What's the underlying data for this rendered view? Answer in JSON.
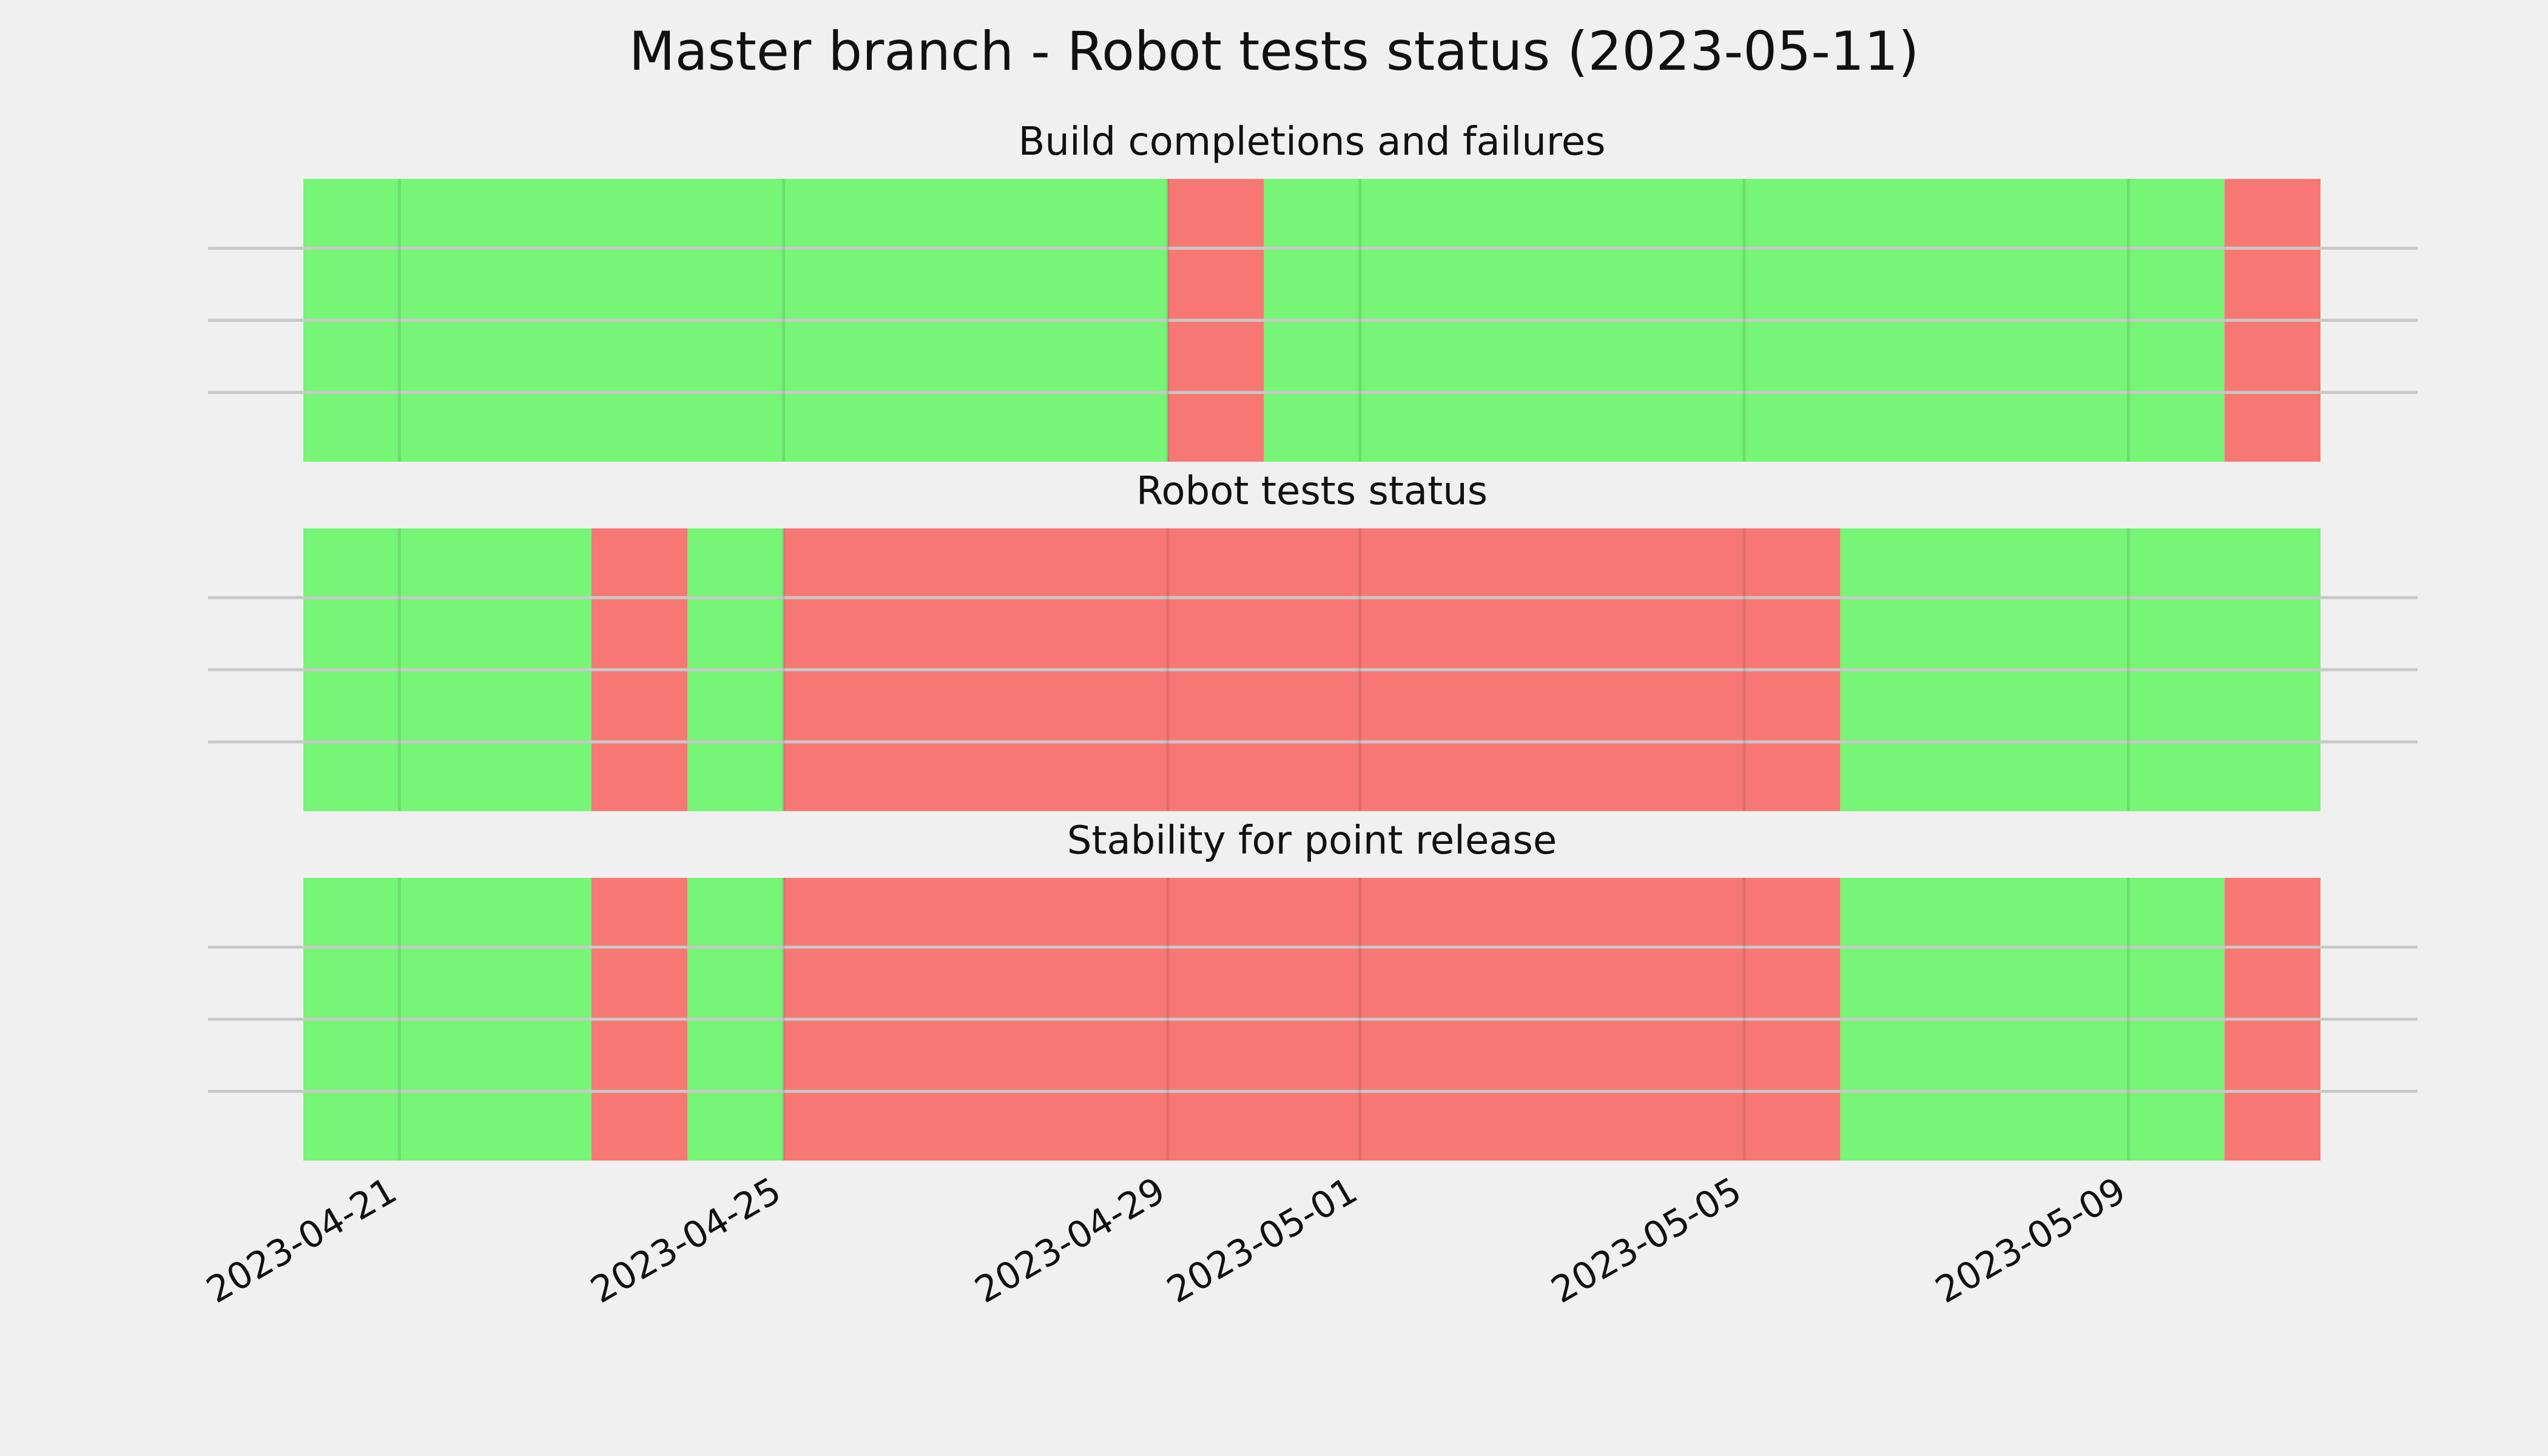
{
  "chart_data": {
    "type": "timeline",
    "title": "Master branch - Robot tests status (2023-05-11)",
    "colors": {
      "pass": "#76f576",
      "fail": "#f77774",
      "background": "#f0f0f0",
      "grid": "#c8c8c8"
    },
    "xlim": [
      "2023-04-20",
      "2023-05-11"
    ],
    "xticks": [
      "2023-04-21",
      "2023-04-25",
      "2023-04-29",
      "2023-05-01",
      "2023-05-05",
      "2023-05-09"
    ],
    "grid": true,
    "panels": [
      {
        "title": "Build completions and failures",
        "segments": [
          {
            "start": "2023-04-20",
            "end": "2023-04-29",
            "status": "pass"
          },
          {
            "start": "2023-04-29",
            "end": "2023-04-30",
            "status": "fail"
          },
          {
            "start": "2023-04-30",
            "end": "2023-05-10",
            "status": "pass"
          },
          {
            "start": "2023-05-10",
            "end": "2023-05-11",
            "status": "fail"
          }
        ]
      },
      {
        "title": "Robot tests status",
        "segments": [
          {
            "start": "2023-04-20",
            "end": "2023-04-23",
            "status": "pass"
          },
          {
            "start": "2023-04-23",
            "end": "2023-04-24",
            "status": "fail"
          },
          {
            "start": "2023-04-24",
            "end": "2023-04-25",
            "status": "pass"
          },
          {
            "start": "2023-04-25",
            "end": "2023-05-06",
            "status": "fail"
          },
          {
            "start": "2023-05-06",
            "end": "2023-05-11",
            "status": "pass"
          }
        ]
      },
      {
        "title": "Stability for point release",
        "segments": [
          {
            "start": "2023-04-20",
            "end": "2023-04-23",
            "status": "pass"
          },
          {
            "start": "2023-04-23",
            "end": "2023-04-24",
            "status": "fail"
          },
          {
            "start": "2023-04-24",
            "end": "2023-04-25",
            "status": "pass"
          },
          {
            "start": "2023-04-25",
            "end": "2023-05-06",
            "status": "fail"
          },
          {
            "start": "2023-05-06",
            "end": "2023-05-10",
            "status": "pass"
          },
          {
            "start": "2023-05-10",
            "end": "2023-05-11",
            "status": "fail"
          }
        ]
      }
    ]
  }
}
